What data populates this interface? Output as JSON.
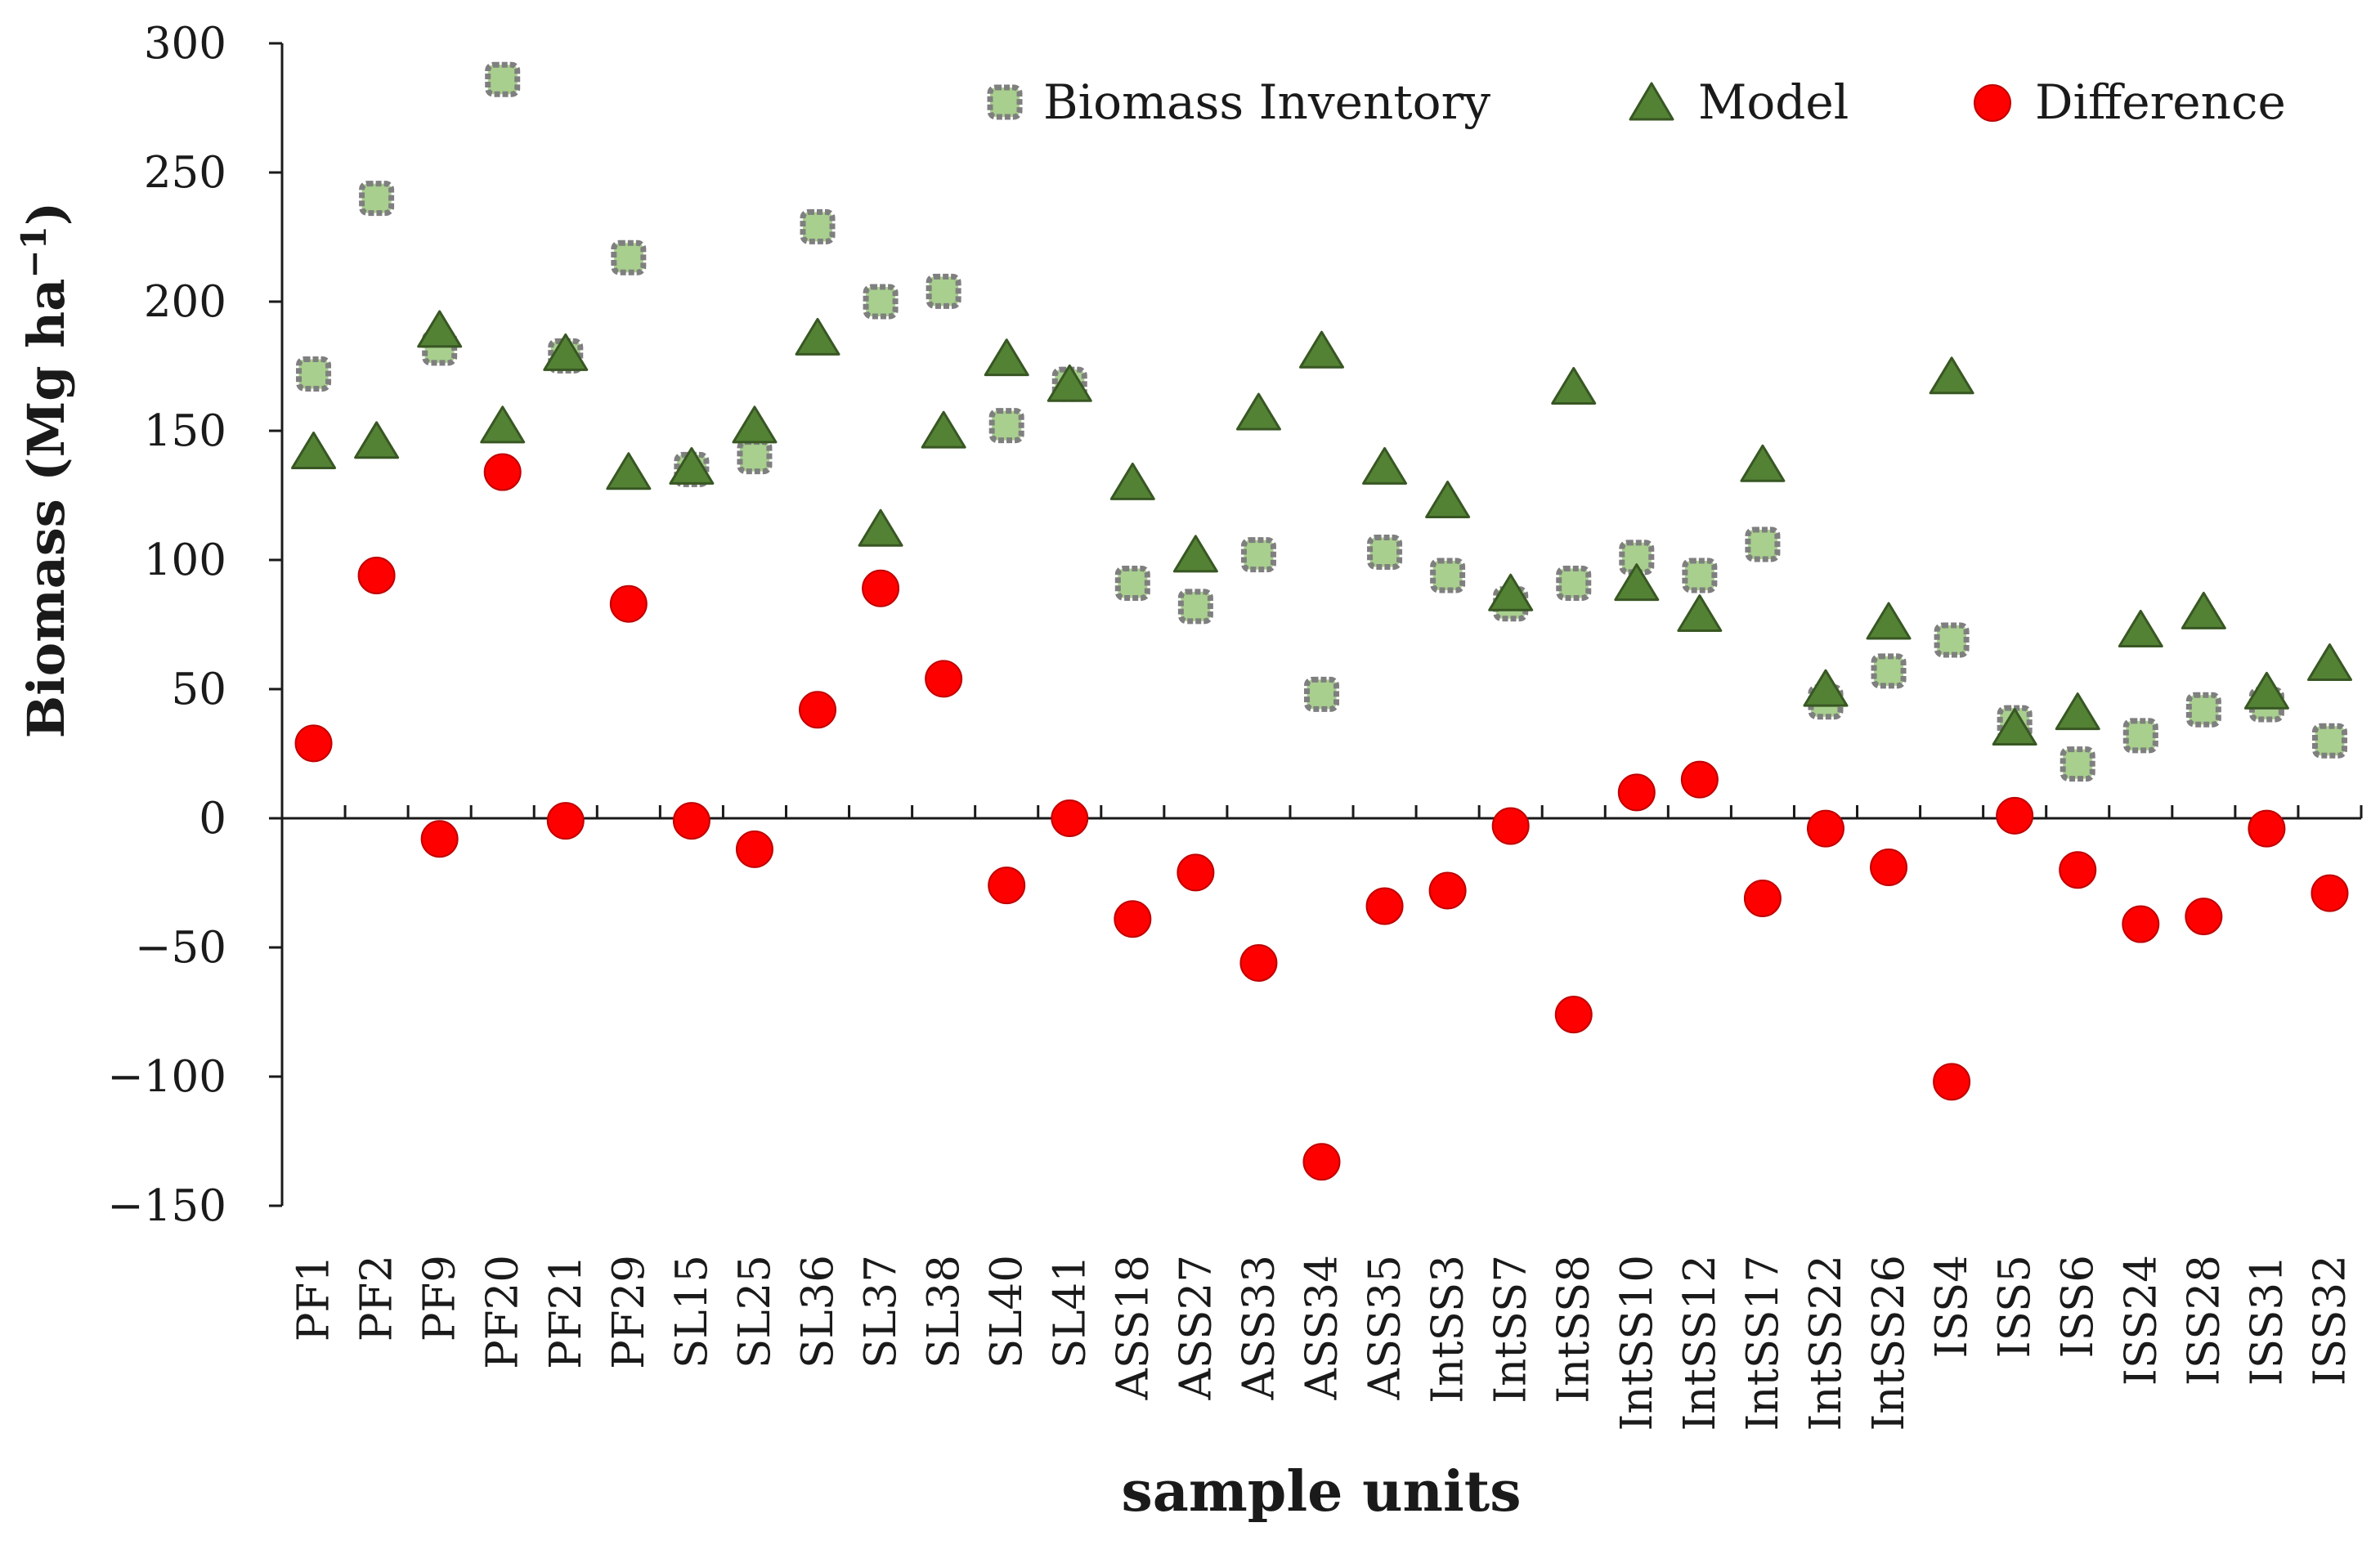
{
  "chart_data": {
    "type": "scatter",
    "title": "",
    "xlabel": "sample units",
    "ylabel_main": "Biomass (Mg ha",
    "ylabel_sup": "−1",
    "ylabel_close": ")",
    "ylim": [
      -150,
      300
    ],
    "yticks": [
      300,
      250,
      200,
      150,
      100,
      50,
      0,
      -50,
      -100,
      -150
    ],
    "ytick_labels": [
      "300",
      "250",
      "200",
      "150",
      "100",
      "50",
      "0",
      "−50",
      "−100",
      "−150"
    ],
    "grid": false,
    "legend_position": "top-right",
    "categories": [
      "PF1",
      "PF2",
      "PF9",
      "PF20",
      "PF21",
      "PF29",
      "SL15",
      "SL25",
      "SL36",
      "SL37",
      "SL38",
      "SL40",
      "SL41",
      "ASS18",
      "ASS27",
      "ASS33",
      "ASS34",
      "ASS35",
      "IntSS3",
      "IntSS7",
      "IntSS8",
      "IntSS10",
      "IntSS12",
      "IntSS17",
      "IntSS22",
      "IntSS26",
      "ISS4",
      "ISS5",
      "ISS6",
      "ISS24",
      "ISS28",
      "ISS31",
      "ISS32"
    ],
    "series": [
      {
        "name": "Biomass Inventory",
        "marker": "square",
        "color": "#a8cf8e",
        "edge_color": "#7f7f7f",
        "values": [
          172,
          240,
          182,
          286,
          179,
          217,
          135,
          140,
          229,
          200,
          204,
          152,
          168,
          91,
          82,
          102,
          48,
          103,
          94,
          83,
          91,
          101,
          94,
          106,
          45,
          57,
          69,
          37,
          21,
          32,
          42,
          44,
          30
        ]
      },
      {
        "name": "Model",
        "marker": "triangle",
        "color": "#548235",
        "edge_color": "#385723",
        "values": [
          141,
          145,
          188,
          151,
          179,
          133,
          135,
          151,
          185,
          111,
          149,
          177,
          167,
          129,
          101,
          156,
          180,
          135,
          122,
          86,
          166,
          90,
          78,
          136,
          49,
          75,
          170,
          34,
          40,
          72,
          79,
          48,
          59
        ]
      },
      {
        "name": "Difference",
        "marker": "circle",
        "color": "#ff0000",
        "edge_color": "#c00000",
        "values": [
          29,
          94,
          -8,
          134,
          -1,
          83,
          -1,
          -12,
          42,
          89,
          54,
          -26,
          0,
          -39,
          -21,
          -56,
          -133,
          -34,
          -28,
          -3,
          -76,
          10,
          15,
          -31,
          -4,
          -19,
          -102,
          1,
          -20,
          -41,
          -38,
          -4,
          -29
        ]
      }
    ]
  }
}
